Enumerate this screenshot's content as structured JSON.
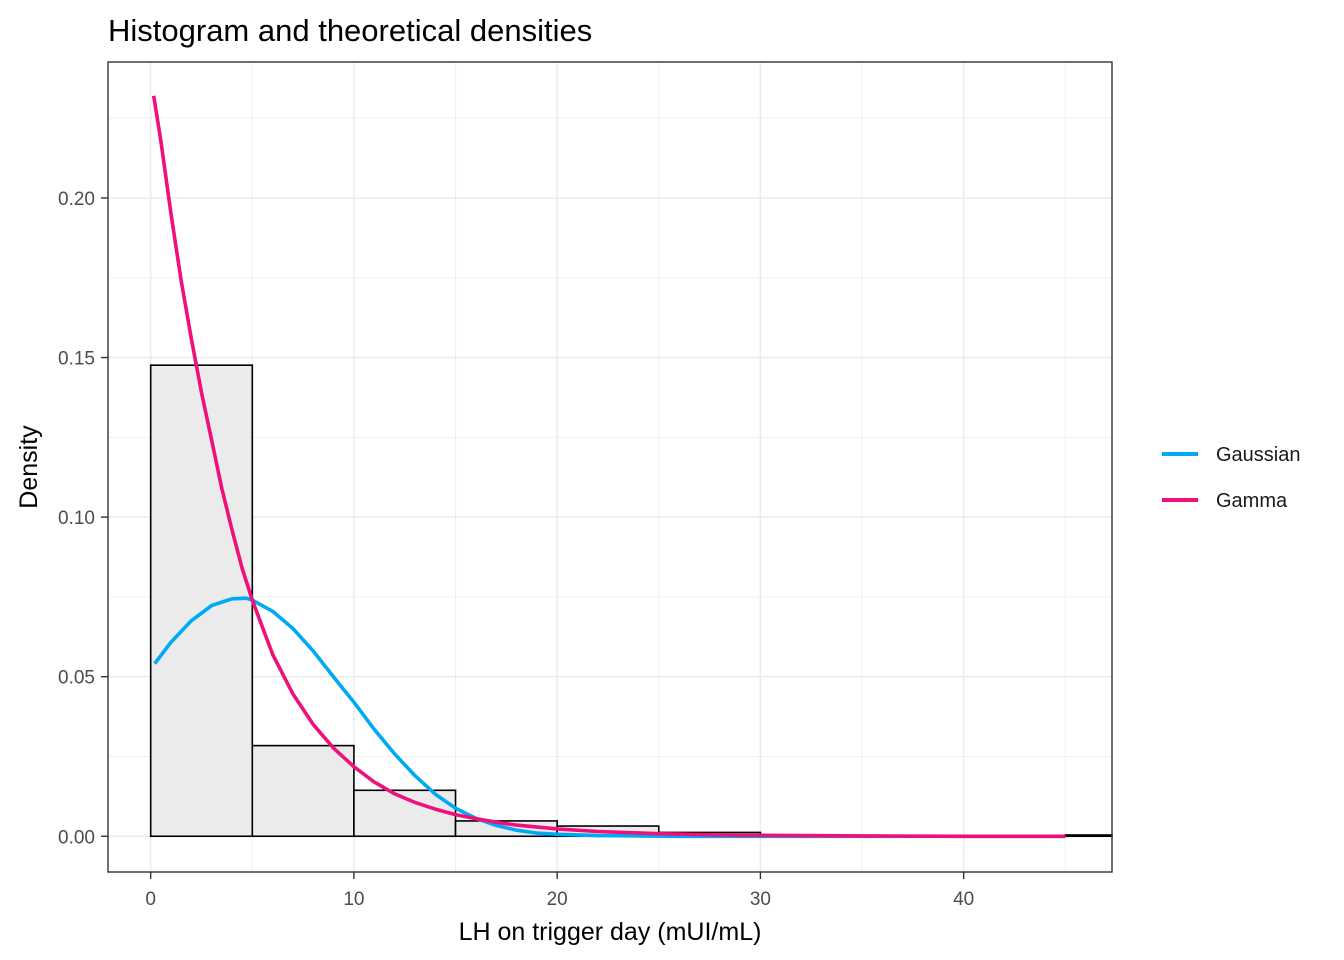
{
  "chart_data": {
    "type": "histogram",
    "title": "Histogram and theoretical densities",
    "xlabel": "LH on trigger day (mUI/mL)",
    "ylabel": "Density",
    "xlim": [
      -2.1,
      47.3
    ],
    "ylim": [
      -0.0112,
      0.2426
    ],
    "x_ticks": [
      0,
      10,
      20,
      30,
      40
    ],
    "y_ticks": [
      0.0,
      0.05,
      0.1,
      0.15,
      0.2
    ],
    "x_tick_labels": [
      "0",
      "10",
      "20",
      "30",
      "40"
    ],
    "y_tick_labels": [
      "0.00",
      "0.05",
      "0.10",
      "0.15",
      "0.20"
    ],
    "grid": true,
    "legend_position": "right",
    "bins": [
      {
        "x0": 0,
        "x1": 5,
        "density": 0.1476
      },
      {
        "x0": 5,
        "x1": 10,
        "density": 0.0284
      },
      {
        "x0": 10,
        "x1": 15,
        "density": 0.0144
      },
      {
        "x0": 15,
        "x1": 20,
        "density": 0.0048
      },
      {
        "x0": 20,
        "x1": 25,
        "density": 0.0032
      },
      {
        "x0": 25,
        "x1": 30,
        "density": 0.0012
      },
      {
        "x0": 30,
        "x1": 35,
        "density": 0.0
      },
      {
        "x0": 35,
        "x1": 40,
        "density": 0.0
      },
      {
        "x0": 40,
        "x1": 45,
        "density": 0.0
      },
      {
        "x0": 45,
        "x1": 50,
        "density": 0.0004
      }
    ],
    "series": [
      {
        "name": "Gaussian",
        "color": "#00a9f4",
        "x": [
          0.2,
          1,
          2,
          3,
          4,
          4.7,
          5,
          6,
          7,
          8,
          9,
          10,
          11,
          12,
          13,
          14,
          15,
          16,
          17,
          18,
          19,
          20,
          22,
          24,
          26,
          28,
          30,
          35,
          40,
          45
        ],
        "y": [
          0.0541,
          0.0608,
          0.0675,
          0.0723,
          0.0744,
          0.0746,
          0.074,
          0.0705,
          0.0651,
          0.058,
          0.0499,
          0.042,
          0.0335,
          0.0258,
          0.019,
          0.0132,
          0.0088,
          0.0056,
          0.0034,
          0.0019,
          0.001,
          0.0006,
          0.0002,
          0.0001,
          0.0,
          0.0,
          0.0,
          0.0,
          0.0,
          0.0
        ]
      },
      {
        "name": "Gamma",
        "color": "#f0107a",
        "x": [
          0.15,
          0.5,
          1,
          1.5,
          2,
          2.5,
          3,
          3.5,
          4,
          4.5,
          5,
          6,
          7,
          8,
          9,
          10,
          11,
          12,
          13,
          14,
          15,
          16,
          17,
          18,
          20,
          22,
          25,
          28,
          30,
          35,
          40,
          45
        ],
        "y": [
          0.232,
          0.218,
          0.195,
          0.174,
          0.156,
          0.139,
          0.124,
          0.109,
          0.096,
          0.084,
          0.074,
          0.057,
          0.0446,
          0.035,
          0.0276,
          0.0218,
          0.017,
          0.0133,
          0.0106,
          0.0085,
          0.0068,
          0.0055,
          0.0044,
          0.0035,
          0.0023,
          0.0015,
          0.0008,
          0.0004,
          0.0003,
          0.0001,
          0.0,
          0.0
        ]
      }
    ]
  }
}
